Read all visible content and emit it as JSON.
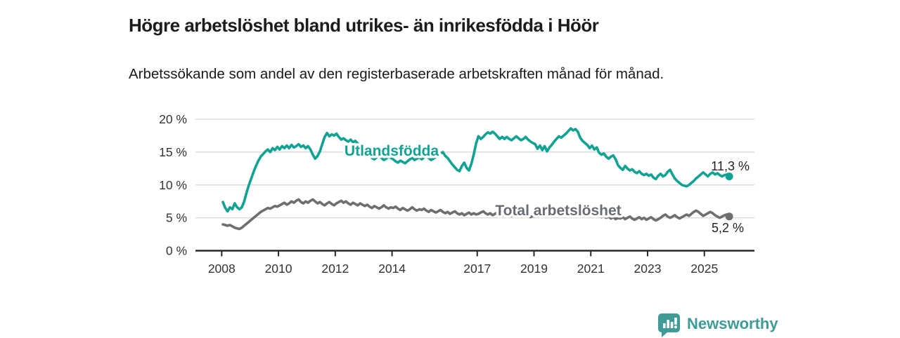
{
  "title": "Högre arbetslöshet bland utrikes- än inrikesfödda i Höör",
  "subtitle": "Arbetssökande som andel av den registerbaserade arbetskraften månad för månad.",
  "footer": {
    "brand": "Newsworthy"
  },
  "colors": {
    "foreign_born_line": "#10a292",
    "total_line": "#6e6e70",
    "total_label": "#696d73",
    "grid": "#dcdcdc",
    "axis": "#26282a",
    "tick_label": "#333333",
    "annotation": "#222222",
    "logo": "#3e9b96"
  },
  "chart_data": {
    "type": "line",
    "title": "Högre arbetslöshet bland utrikes- än inrikesfödda i Höör",
    "subtitle": "Arbetssökande som andel av den registerbaserade arbetskraften månad för månad.",
    "unit": "%",
    "frequency": "monthly",
    "x_start": "2008-01",
    "x_end": "2025-11",
    "ylim": [
      0,
      20
    ],
    "grid": "horizontal",
    "legend": "inline-labels",
    "y_axis": {
      "ticks": [
        {
          "label": "0 %",
          "value": 0
        },
        {
          "label": "5 %",
          "value": 5
        },
        {
          "label": "10 %",
          "value": 10
        },
        {
          "label": "15 %",
          "value": 15
        },
        {
          "label": "20 %",
          "value": 20
        }
      ]
    },
    "x_axis": {
      "ticks": [
        {
          "label": "2008",
          "year": 2008
        },
        {
          "label": "2010",
          "year": 2010
        },
        {
          "label": "2012",
          "year": 2012
        },
        {
          "label": "2014",
          "year": 2014
        },
        {
          "label": "2017",
          "year": 2017
        },
        {
          "label": "2019",
          "year": 2019
        },
        {
          "label": "2021",
          "year": 2021
        },
        {
          "label": "2023",
          "year": 2023
        },
        {
          "label": "2025",
          "year": 2025
        }
      ]
    },
    "series": [
      {
        "name": "Utlandsfödda",
        "color": "#10a292",
        "end_label": "11,3 %",
        "end_value": 11.3,
        "values": [
          7.4,
          6.5,
          6.0,
          6.6,
          6.3,
          7.2,
          6.6,
          6.3,
          6.6,
          7.5,
          8.8,
          10.0,
          11.0,
          12.0,
          12.9,
          13.7,
          14.3,
          14.7,
          15.1,
          15.4,
          15.0,
          15.6,
          15.3,
          15.8,
          15.4,
          15.9,
          15.6,
          16.0,
          15.6,
          16.1,
          15.7,
          15.9,
          16.2,
          15.8,
          16.0,
          15.6,
          15.9,
          15.4,
          14.6,
          14.0,
          14.4,
          15.1,
          16.2,
          17.3,
          17.9,
          17.4,
          17.7,
          17.5,
          17.8,
          17.3,
          16.9,
          17.1,
          16.8,
          16.6,
          16.9,
          16.5,
          16.7,
          16.3,
          16.0,
          15.7,
          15.3,
          14.9,
          14.5,
          14.1,
          13.9,
          14.2,
          14.5,
          14.1,
          13.8,
          14.0,
          14.3,
          14.1,
          13.9,
          13.6,
          13.4,
          13.7,
          13.5,
          13.3,
          13.6,
          13.9,
          14.1,
          13.8,
          14.0,
          14.2,
          13.9,
          14.2,
          14.4,
          14.1,
          13.8,
          14.0,
          14.3,
          14.5,
          14.8,
          15.0,
          14.4,
          14.1,
          13.6,
          13.1,
          12.7,
          12.3,
          12.1,
          12.9,
          13.4,
          12.6,
          12.2,
          13.2,
          14.6,
          16.3,
          17.4,
          17.0,
          17.3,
          17.7,
          18.0,
          17.8,
          18.1,
          17.8,
          17.4,
          17.0,
          17.3,
          17.0,
          17.3,
          17.0,
          16.8,
          17.1,
          17.4,
          17.1,
          16.8,
          17.0,
          17.3,
          16.9,
          16.6,
          16.4,
          16.2,
          15.5,
          16.0,
          15.3,
          15.9,
          15.1,
          15.7,
          16.1,
          16.6,
          17.0,
          17.4,
          17.2,
          17.5,
          17.8,
          18.2,
          18.6,
          18.3,
          18.5,
          18.1,
          17.2,
          16.7,
          16.4,
          16.1,
          15.6,
          16.0,
          15.4,
          15.7,
          14.9,
          14.6,
          14.8,
          14.3,
          14.0,
          14.3,
          14.5,
          13.9,
          13.0,
          12.6,
          12.3,
          12.9,
          12.5,
          12.2,
          12.4,
          12.0,
          11.8,
          12.1,
          11.7,
          11.5,
          11.7,
          11.4,
          11.6,
          11.1,
          10.9,
          11.4,
          11.7,
          11.3,
          11.5,
          12.0,
          12.3,
          11.6,
          11.0,
          10.6,
          10.3,
          10.0,
          9.9,
          9.8,
          10.0,
          10.3,
          10.6,
          11.0,
          11.3,
          11.6,
          11.9,
          11.6,
          11.3,
          11.7,
          11.9,
          11.6,
          11.8,
          11.5,
          11.3,
          11.5,
          11.6,
          11.3
        ]
      },
      {
        "name": "Total arbetslöshet",
        "color": "#6e6e70",
        "end_label": "5,2 %",
        "end_value": 5.2,
        "values": [
          4.0,
          3.9,
          3.8,
          3.9,
          3.7,
          3.5,
          3.4,
          3.3,
          3.5,
          3.8,
          4.1,
          4.4,
          4.7,
          5.0,
          5.3,
          5.6,
          5.9,
          6.1,
          6.3,
          6.5,
          6.4,
          6.6,
          6.8,
          6.7,
          6.9,
          7.1,
          7.3,
          7.0,
          7.2,
          7.5,
          7.3,
          7.6,
          7.8,
          7.4,
          7.2,
          7.5,
          7.3,
          7.6,
          7.8,
          7.5,
          7.2,
          7.4,
          7.1,
          6.9,
          7.2,
          7.4,
          7.1,
          6.9,
          7.2,
          7.4,
          7.6,
          7.3,
          7.5,
          7.2,
          7.0,
          7.3,
          7.1,
          6.9,
          7.2,
          7.0,
          6.8,
          7.0,
          6.7,
          6.5,
          6.8,
          6.6,
          6.4,
          6.6,
          6.9,
          6.6,
          6.4,
          6.6,
          6.5,
          6.7,
          6.4,
          6.2,
          6.5,
          6.3,
          6.1,
          6.3,
          6.6,
          6.3,
          6.1,
          6.3,
          6.2,
          6.4,
          6.1,
          5.9,
          6.2,
          6.0,
          5.8,
          6.0,
          6.2,
          5.9,
          5.7,
          5.9,
          5.6,
          5.8,
          6.0,
          5.7,
          5.5,
          5.7,
          5.4,
          5.6,
          5.8,
          5.5,
          5.7,
          5.5,
          5.6,
          5.8,
          6.0,
          5.7,
          5.5,
          5.7,
          5.4,
          5.6,
          5.8,
          5.5,
          5.3,
          5.5,
          5.4,
          5.6,
          5.3,
          5.5,
          5.7,
          5.4,
          5.2,
          5.4,
          5.6,
          5.3,
          5.1,
          5.3,
          5.2,
          5.4,
          5.6,
          5.3,
          5.5,
          5.7,
          5.4,
          5.2,
          5.4,
          5.6,
          5.3,
          5.5,
          5.6,
          5.8,
          6.1,
          6.3,
          6.1,
          5.9,
          6.1,
          5.8,
          5.6,
          5.8,
          5.5,
          5.7,
          5.6,
          5.4,
          5.6,
          5.3,
          5.1,
          5.3,
          5.0,
          5.2,
          4.9,
          5.1,
          4.8,
          5.0,
          4.9,
          5.1,
          4.8,
          5.0,
          5.2,
          4.9,
          4.7,
          4.9,
          5.1,
          4.8,
          5.0,
          4.7,
          4.9,
          5.1,
          4.8,
          4.6,
          4.8,
          5.0,
          5.3,
          5.5,
          5.2,
          5.0,
          5.2,
          5.4,
          5.1,
          4.9,
          5.1,
          5.3,
          5.5,
          5.3,
          5.6,
          5.9,
          6.1,
          5.9,
          5.6,
          5.3,
          5.5,
          5.7,
          5.9,
          5.7,
          5.4,
          5.2,
          5.0,
          5.2,
          5.4,
          5.5,
          5.2
        ]
      }
    ]
  }
}
